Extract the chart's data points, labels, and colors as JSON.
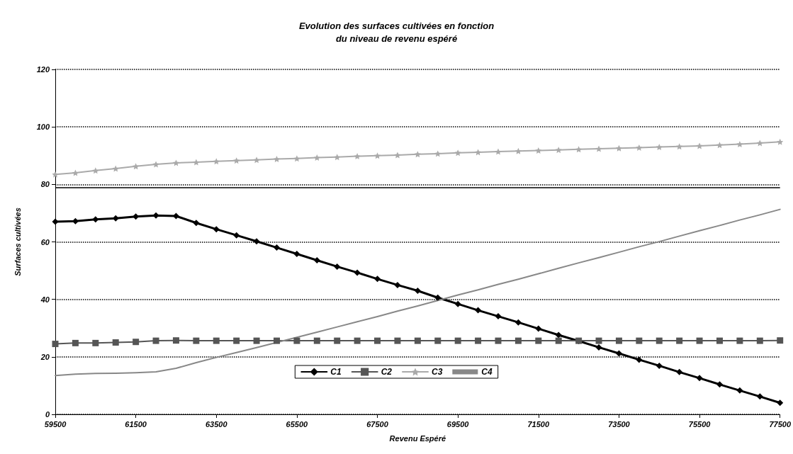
{
  "chart_data": {
    "type": "line",
    "title": "Evolution des surfaces cultivées en fonction\ndu niveau de revenu espéré",
    "xlabel": "Revenu Espéré",
    "ylabel": "Surfaces cultivées",
    "x": [
      59500,
      60000,
      60500,
      61000,
      61500,
      62000,
      62500,
      63000,
      63500,
      64000,
      64500,
      65000,
      65500,
      66000,
      66500,
      67000,
      67500,
      68000,
      68500,
      69000,
      69500,
      70000,
      70500,
      71000,
      71500,
      72000,
      72500,
      73000,
      73500,
      74000,
      74500,
      75000,
      75500,
      76000,
      76500,
      77000,
      77500
    ],
    "series": [
      {
        "name": "C1",
        "color": "#000000",
        "marker": "diamond",
        "values": [
          67,
          67.2,
          67.8,
          68.2,
          68.8,
          69.2,
          69,
          66.6,
          64.4,
          62.3,
          60.2,
          58,
          55.8,
          53.6,
          51.4,
          49.3,
          47.1,
          45,
          43,
          40.6,
          38.4,
          36.2,
          34.1,
          32,
          29.8,
          27.6,
          25.5,
          23.3,
          21.2,
          19,
          16.9,
          14.7,
          12.6,
          10.4,
          8.3,
          6.2,
          4
        ]
      },
      {
        "name": "C2",
        "color": "#555555",
        "marker": "square",
        "values": [
          24.5,
          24.8,
          24.8,
          25,
          25.2,
          25.6,
          25.7,
          25.6,
          25.6,
          25.6,
          25.6,
          25.6,
          25.6,
          25.6,
          25.6,
          25.6,
          25.6,
          25.6,
          25.6,
          25.6,
          25.6,
          25.6,
          25.6,
          25.6,
          25.6,
          25.6,
          25.6,
          25.6,
          25.6,
          25.6,
          25.6,
          25.6,
          25.6,
          25.6,
          25.6,
          25.6,
          25.7
        ]
      },
      {
        "name": "C3",
        "color": "#aaaaaa",
        "marker": "star",
        "values": [
          83.5,
          84,
          84.8,
          85.5,
          86.3,
          87,
          87.5,
          87.7,
          88,
          88.3,
          88.5,
          88.8,
          89,
          89.3,
          89.5,
          89.8,
          90,
          90.2,
          90.5,
          90.7,
          91,
          91.2,
          91.4,
          91.6,
          91.8,
          92,
          92.2,
          92.4,
          92.6,
          92.8,
          93,
          93.2,
          93.4,
          93.7,
          94,
          94.4,
          94.8
        ]
      },
      {
        "name": "C4",
        "color": "#888888",
        "marker": "none",
        "values": [
          13.5,
          14,
          14.2,
          14.3,
          14.5,
          14.8,
          16,
          18,
          19.8,
          21.5,
          23.2,
          25,
          26.8,
          28.6,
          30.4,
          32.2,
          34,
          35.9,
          37.7,
          39.6,
          41.5,
          43.3,
          45.2,
          47,
          48.9,
          50.8,
          52.7,
          54.5,
          56.4,
          58.3,
          60.1,
          62,
          63.9,
          65.7,
          67.6,
          69.4,
          71.3
        ]
      }
    ],
    "xlim": [
      59500,
      77500
    ],
    "xticks": [
      59500,
      61500,
      63500,
      65500,
      67500,
      69500,
      71500,
      73500,
      75500,
      77500
    ],
    "ylim": [
      0,
      120
    ],
    "yticks": [
      0,
      20,
      40,
      60,
      80,
      100,
      120
    ],
    "ref_lines": [
      {
        "axis": "y",
        "value": 79,
        "color": "#000000",
        "line_style": "solid"
      }
    ],
    "grid": "y",
    "legend": "bottom",
    "line_style": "solid"
  }
}
